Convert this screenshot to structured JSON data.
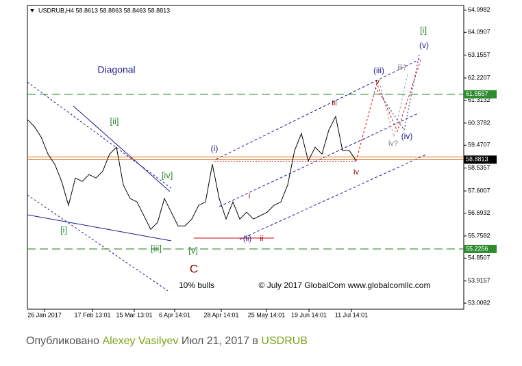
{
  "chart_data": {
    "type": "line",
    "title": "USDRUB,H4  58.8613 58.8863 58.8463 58.8813",
    "series": [
      {
        "name": "USDRUB",
        "color": "#000000",
        "values": [
          60.52,
          60.24,
          59.81,
          59.11,
          58.69,
          57.99,
          57.01,
          58.13,
          57.99,
          58.27,
          58.13,
          58.41,
          59.11,
          59.39,
          57.85,
          57.29,
          57.15,
          56.59,
          56.03,
          56.31,
          57.29,
          56.73,
          56.17,
          56.17,
          56.45,
          57.01,
          57.15,
          58.69,
          57.29,
          56.45,
          57.15,
          56.45,
          56.73,
          56.45,
          56.59,
          56.73,
          57.01,
          57.15,
          57.85,
          59.25,
          59.95,
          58.83,
          59.39,
          59.11,
          60.09,
          60.65,
          59.25,
          59.25,
          58.83
        ]
      }
    ],
    "xlim": [
      0,
      63.7
    ],
    "xticks": [
      {
        "value": 2.5,
        "label": "26 Jan 2017"
      },
      {
        "value": 9.5,
        "label": "17 Feb 13:01"
      },
      {
        "value": 15.6,
        "label": "15 Mar 13:01"
      },
      {
        "value": 21.5,
        "label": "6 Apr 14:01"
      },
      {
        "value": 28.3,
        "label": "28 Apr 14:01"
      },
      {
        "value": 34.9,
        "label": "25 May 14:01"
      },
      {
        "value": 41.1,
        "label": "19 Jun 14:01"
      },
      {
        "value": 47.3,
        "label": "11 Jul 14:01"
      }
    ],
    "ylim": [
      52.76,
      65.19
    ],
    "yticks": [
      64.9982,
      64.0907,
      63.1557,
      62.2207,
      61.3132,
      60.3782,
      59.4707,
      58.5357,
      57.6007,
      56.6932,
      55.7582,
      54.8507,
      53.9157,
      53.0082
    ],
    "levels": [
      {
        "value": 61.5557,
        "color": "#2e8b2e"
      },
      {
        "value": 55.2256,
        "color": "#2e8b2e"
      }
    ],
    "last_price": {
      "value": 58.8813,
      "color": "#d2691e"
    },
    "annotations": [
      {
        "text": "Diagonal",
        "color": "#1a1a8c"
      },
      {
        "text": "[ii]",
        "color": "#2e8b2e"
      },
      {
        "text": "[iv]",
        "color": "#2e8b2e"
      },
      {
        "text": "[i]",
        "color": "#2e8b2e"
      },
      {
        "text": "[iii]",
        "color": "#2e8b2e"
      },
      {
        "text": "[v]",
        "color": "#2e8b2e"
      },
      {
        "text": "C",
        "color": "#8b0000"
      },
      {
        "text": "10% bulls",
        "color": "#000000"
      },
      {
        "text": "© July 2017 GlobalCom www.globalcomllc.com",
        "color": "#000000"
      },
      {
        "text": "(i)",
        "color": "#1a1a8c"
      },
      {
        "text": "i",
        "color": "#8b0000"
      },
      {
        "text": "(ii)",
        "color": "#1a1a8c"
      },
      {
        "text": "ii",
        "color": "#8b0000"
      },
      {
        "text": "iii",
        "color": "#8b0000"
      },
      {
        "text": "iv",
        "color": "#8b0000"
      },
      {
        "text": "(iii)",
        "color": "#1a1a8c"
      },
      {
        "text": "v",
        "color": "#8b0000"
      },
      {
        "text": "iii?",
        "color": "#808080"
      },
      {
        "text": "iv?",
        "color": "#808080"
      },
      {
        "text": "(iv)",
        "color": "#1a1a8c"
      },
      {
        "text": "[i]",
        "color": "#2e8b2e"
      },
      {
        "text": "(v)",
        "color": "#1a1a8c"
      }
    ]
  },
  "caption": {
    "prefix": "Опубликовано",
    "author": "Alexey Vasilyev",
    "date": "Июл 21, 2017 в",
    "symbol": "USDRUB"
  }
}
